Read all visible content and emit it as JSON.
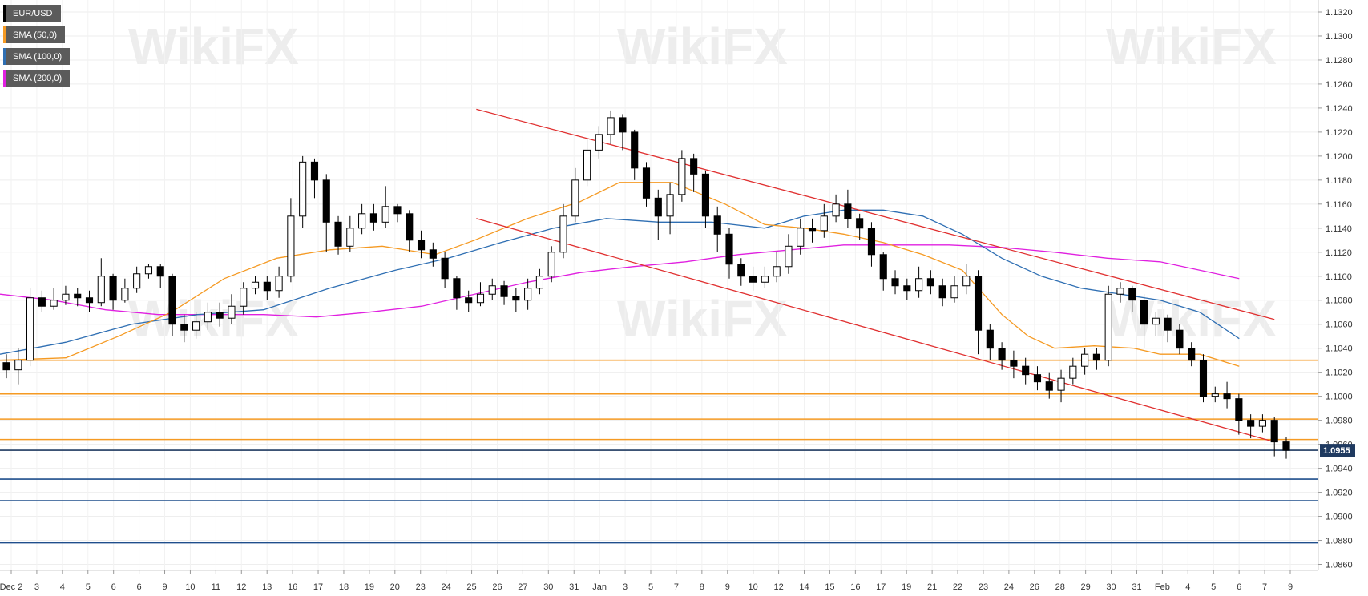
{
  "legend": [
    {
      "label": "EUR/USD",
      "color": "#000000"
    },
    {
      "label": "SMA (50,0)",
      "color": "#f59a23"
    },
    {
      "label": "SMA (100,0)",
      "color": "#2f6fb3"
    },
    {
      "label": "SMA (200,0)",
      "color": "#e020e0"
    }
  ],
  "watermark": {
    "text": "WikiFX"
  },
  "chart_data": {
    "type": "candlestick",
    "symbol": "EUR/USD",
    "ylim": [
      1.0855,
      1.133
    ],
    "y_ticks": [
      "1.0860",
      "1.0880",
      "1.0900",
      "1.0920",
      "1.0940",
      "1.0960",
      "1.0980",
      "1.1000",
      "1.1020",
      "1.1040",
      "1.1060",
      "1.1080",
      "1.1100",
      "1.1120",
      "1.1140",
      "1.1160",
      "1.1180",
      "1.1200",
      "1.1220",
      "1.1240",
      "1.1260",
      "1.1280",
      "1.1300",
      "1.1320"
    ],
    "x_ticks": [
      "Dec 2",
      "3",
      "4",
      "5",
      "6",
      "6",
      "9",
      "10",
      "11",
      "12",
      "13",
      "16",
      "17",
      "18",
      "19",
      "20",
      "23",
      "24",
      "25",
      "26",
      "27",
      "30",
      "31",
      "Jan",
      "3",
      "5",
      "7",
      "8",
      "9",
      "10",
      "12",
      "14",
      "15",
      "16",
      "17",
      "19",
      "21",
      "22",
      "23",
      "24",
      "26",
      "28",
      "29",
      "30",
      "31",
      "Feb",
      "4",
      "5",
      "6",
      "7",
      "9"
    ],
    "current_price": "1.0955",
    "horizontal_levels": [
      {
        "value": 1.103,
        "color": "#f59a23"
      },
      {
        "value": 1.1002,
        "color": "#f59a23"
      },
      {
        "value": 1.0981,
        "color": "#f59a23"
      },
      {
        "value": 1.0964,
        "color": "#f59a23"
      },
      {
        "value": 1.0955,
        "color": "#1f3a60"
      },
      {
        "value": 1.0931,
        "color": "#1f4e8c"
      },
      {
        "value": 1.0913,
        "color": "#1f4e8c"
      },
      {
        "value": 1.0878,
        "color": "#1f4e8c"
      }
    ],
    "trendlines": [
      {
        "color": "#e03030",
        "points": [
          [
            0.3613,
            1.1239
          ],
          [
            0.9667,
            1.1064
          ]
        ]
      },
      {
        "color": "#e03030",
        "points": [
          [
            0.3613,
            1.1148
          ],
          [
            0.9667,
            1.0962
          ]
        ]
      }
    ],
    "sma_50": [
      [
        0,
        1.103
      ],
      [
        0.05,
        1.1032
      ],
      [
        0.09,
        1.105
      ],
      [
        0.13,
        1.107
      ],
      [
        0.17,
        1.1098
      ],
      [
        0.21,
        1.1115
      ],
      [
        0.25,
        1.1122
      ],
      [
        0.29,
        1.1125
      ],
      [
        0.33,
        1.1118
      ],
      [
        0.36,
        1.113
      ],
      [
        0.4,
        1.1148
      ],
      [
        0.44,
        1.1162
      ],
      [
        0.47,
        1.1178
      ],
      [
        0.51,
        1.1178
      ],
      [
        0.55,
        1.116
      ],
      [
        0.58,
        1.1143
      ],
      [
        0.61,
        1.114
      ],
      [
        0.64,
        1.1135
      ],
      [
        0.67,
        1.1128
      ],
      [
        0.7,
        1.1118
      ],
      [
        0.73,
        1.1105
      ],
      [
        0.76,
        1.1068
      ],
      [
        0.78,
        1.105
      ],
      [
        0.8,
        1.104
      ],
      [
        0.83,
        1.1042
      ],
      [
        0.86,
        1.104
      ],
      [
        0.88,
        1.1035
      ],
      [
        0.91,
        1.1035
      ],
      [
        0.94,
        1.1025
      ]
    ],
    "sma_100": [
      [
        0,
        1.1035
      ],
      [
        0.05,
        1.1045
      ],
      [
        0.1,
        1.106
      ],
      [
        0.15,
        1.1068
      ],
      [
        0.2,
        1.1072
      ],
      [
        0.25,
        1.109
      ],
      [
        0.3,
        1.1105
      ],
      [
        0.34,
        1.1115
      ],
      [
        0.38,
        1.1128
      ],
      [
        0.42,
        1.114
      ],
      [
        0.46,
        1.1148
      ],
      [
        0.5,
        1.1145
      ],
      [
        0.54,
        1.1145
      ],
      [
        0.58,
        1.114
      ],
      [
        0.61,
        1.115
      ],
      [
        0.64,
        1.1155
      ],
      [
        0.67,
        1.1155
      ],
      [
        0.7,
        1.115
      ],
      [
        0.73,
        1.1135
      ],
      [
        0.76,
        1.1115
      ],
      [
        0.79,
        1.11
      ],
      [
        0.82,
        1.109
      ],
      [
        0.85,
        1.1085
      ],
      [
        0.88,
        1.108
      ],
      [
        0.91,
        1.107
      ],
      [
        0.94,
        1.1048
      ]
    ],
    "sma_200": [
      [
        0,
        1.1085
      ],
      [
        0.04,
        1.108
      ],
      [
        0.08,
        1.1072
      ],
      [
        0.12,
        1.1068
      ],
      [
        0.16,
        1.1068
      ],
      [
        0.2,
        1.1068
      ],
      [
        0.24,
        1.1066
      ],
      [
        0.28,
        1.107
      ],
      [
        0.32,
        1.1075
      ],
      [
        0.36,
        1.1085
      ],
      [
        0.4,
        1.1095
      ],
      [
        0.44,
        1.1103
      ],
      [
        0.48,
        1.1108
      ],
      [
        0.52,
        1.1112
      ],
      [
        0.56,
        1.1118
      ],
      [
        0.6,
        1.1122
      ],
      [
        0.64,
        1.1126
      ],
      [
        0.68,
        1.1126
      ],
      [
        0.72,
        1.1126
      ],
      [
        0.76,
        1.1124
      ],
      [
        0.8,
        1.112
      ],
      [
        0.84,
        1.1115
      ],
      [
        0.88,
        1.1112
      ],
      [
        0.91,
        1.1105
      ],
      [
        0.94,
        1.1098
      ]
    ],
    "candles": [
      [
        1.1028,
        1.1022,
        1.1035,
        1.1015
      ],
      [
        1.1022,
        1.103,
        1.104,
        1.101
      ],
      [
        1.103,
        1.1082,
        1.109,
        1.1025
      ],
      [
        1.1082,
        1.1075,
        1.1088,
        1.107
      ],
      [
        1.1075,
        1.108,
        1.109,
        1.1072
      ],
      [
        1.108,
        1.1085,
        1.1092,
        1.1076
      ],
      [
        1.1085,
        1.1082,
        1.109,
        1.1075
      ],
      [
        1.1082,
        1.1078,
        1.1088,
        1.107
      ],
      [
        1.1078,
        1.11,
        1.1115,
        1.1075
      ],
      [
        1.11,
        1.108,
        1.1102,
        1.1072
      ],
      [
        1.108,
        1.109,
        1.1098,
        1.1078
      ],
      [
        1.109,
        1.1102,
        1.1108,
        1.1086
      ],
      [
        1.1102,
        1.1108,
        1.111,
        1.1098
      ],
      [
        1.1108,
        1.11,
        1.111,
        1.109
      ],
      [
        1.11,
        1.106,
        1.1102,
        1.105
      ],
      [
        1.106,
        1.1055,
        1.1068,
        1.1045
      ],
      [
        1.1055,
        1.1062,
        1.107,
        1.1048
      ],
      [
        1.1062,
        1.107,
        1.1078,
        1.1055
      ],
      [
        1.107,
        1.1065,
        1.1078,
        1.1058
      ],
      [
        1.1065,
        1.1075,
        1.1085,
        1.106
      ],
      [
        1.1075,
        1.109,
        1.1095,
        1.1068
      ],
      [
        1.109,
        1.1095,
        1.11,
        1.1085
      ],
      [
        1.1095,
        1.1088,
        1.11,
        1.108
      ],
      [
        1.1088,
        1.11,
        1.1108,
        1.1082
      ],
      [
        1.11,
        1.115,
        1.1165,
        1.1095
      ],
      [
        1.115,
        1.1195,
        1.12,
        1.114
      ],
      [
        1.1195,
        1.118,
        1.1198,
        1.1165
      ],
      [
        1.118,
        1.1145,
        1.1185,
        1.112
      ],
      [
        1.1145,
        1.1125,
        1.115,
        1.1118
      ],
      [
        1.1125,
        1.114,
        1.115,
        1.112
      ],
      [
        1.114,
        1.1152,
        1.116,
        1.1135
      ],
      [
        1.1152,
        1.1145,
        1.116,
        1.1138
      ],
      [
        1.1145,
        1.1158,
        1.1175,
        1.114
      ],
      [
        1.1158,
        1.1152,
        1.116,
        1.1145
      ],
      [
        1.1152,
        1.113,
        1.1155,
        1.112
      ],
      [
        1.113,
        1.1122,
        1.1138,
        1.1115
      ],
      [
        1.1122,
        1.1115,
        1.1128,
        1.1108
      ],
      [
        1.1115,
        1.1098,
        1.112,
        1.109
      ],
      [
        1.1098,
        1.1082,
        1.11,
        1.1072
      ],
      [
        1.1082,
        1.1078,
        1.1088,
        1.107
      ],
      [
        1.1078,
        1.1085,
        1.1095,
        1.1075
      ],
      [
        1.1085,
        1.1092,
        1.1098,
        1.108
      ],
      [
        1.1092,
        1.1083,
        1.1096,
        1.1076
      ],
      [
        1.1083,
        1.108,
        1.109,
        1.107
      ],
      [
        1.108,
        1.109,
        1.1098,
        1.1072
      ],
      [
        1.109,
        1.11,
        1.1106,
        1.1085
      ],
      [
        1.11,
        1.112,
        1.1125,
        1.1095
      ],
      [
        1.112,
        1.115,
        1.116,
        1.1115
      ],
      [
        1.115,
        1.118,
        1.119,
        1.1145
      ],
      [
        1.118,
        1.1205,
        1.1215,
        1.1175
      ],
      [
        1.1205,
        1.1218,
        1.1225,
        1.1198
      ],
      [
        1.1218,
        1.1232,
        1.1238,
        1.121
      ],
      [
        1.1232,
        1.122,
        1.1235,
        1.1205
      ],
      [
        1.122,
        1.119,
        1.1222,
        1.118
      ],
      [
        1.119,
        1.1165,
        1.1195,
        1.1158
      ],
      [
        1.1165,
        1.115,
        1.1172,
        1.113
      ],
      [
        1.115,
        1.1168,
        1.1178,
        1.1135
      ],
      [
        1.1168,
        1.1198,
        1.1205,
        1.1162
      ],
      [
        1.1198,
        1.1185,
        1.1202,
        1.117
      ],
      [
        1.1185,
        1.115,
        1.1188,
        1.114
      ],
      [
        1.115,
        1.1135,
        1.1158,
        1.112
      ],
      [
        1.1135,
        1.111,
        1.114,
        1.1098
      ],
      [
        1.111,
        1.11,
        1.1115,
        1.1092
      ],
      [
        1.11,
        1.1095,
        1.1108,
        1.1088
      ],
      [
        1.1095,
        1.11,
        1.1108,
        1.109
      ],
      [
        1.11,
        1.1108,
        1.112,
        1.1095
      ],
      [
        1.1108,
        1.1125,
        1.1135,
        1.1102
      ],
      [
        1.1125,
        1.114,
        1.1148,
        1.1118
      ],
      [
        1.114,
        1.1138,
        1.1148,
        1.1128
      ],
      [
        1.1138,
        1.115,
        1.116,
        1.1132
      ],
      [
        1.115,
        1.116,
        1.1168,
        1.1145
      ],
      [
        1.116,
        1.1148,
        1.1172,
        1.114
      ],
      [
        1.1148,
        1.114,
        1.1152,
        1.113
      ],
      [
        1.114,
        1.1118,
        1.1145,
        1.1108
      ],
      [
        1.1118,
        1.1098,
        1.112,
        1.1088
      ],
      [
        1.1098,
        1.1092,
        1.1105,
        1.1085
      ],
      [
        1.1092,
        1.1088,
        1.1098,
        1.108
      ],
      [
        1.1088,
        1.1098,
        1.1108,
        1.1082
      ],
      [
        1.1098,
        1.1092,
        1.1105,
        1.1085
      ],
      [
        1.1092,
        1.1082,
        1.1098,
        1.1075
      ],
      [
        1.1082,
        1.1092,
        1.11,
        1.1078
      ],
      [
        1.1092,
        1.11,
        1.111,
        1.1085
      ],
      [
        1.11,
        1.1055,
        1.1105,
        1.1035
      ],
      [
        1.1055,
        1.104,
        1.106,
        1.103
      ],
      [
        1.104,
        1.103,
        1.1045,
        1.1022
      ],
      [
        1.103,
        1.1025,
        1.1038,
        1.1015
      ],
      [
        1.1025,
        1.1018,
        1.1032,
        1.101
      ],
      [
        1.1018,
        1.1012,
        1.1025,
        1.1005
      ],
      [
        1.1012,
        1.1005,
        1.102,
        1.0998
      ],
      [
        1.1005,
        1.1015,
        1.1022,
        1.0995
      ],
      [
        1.1015,
        1.1025,
        1.1032,
        1.101
      ],
      [
        1.1025,
        1.1035,
        1.104,
        1.1018
      ],
      [
        1.1035,
        1.103,
        1.104,
        1.1022
      ],
      [
        1.103,
        1.1085,
        1.1092,
        1.1025
      ],
      [
        1.1085,
        1.109,
        1.1095,
        1.1078
      ],
      [
        1.109,
        1.108,
        1.1092,
        1.107
      ],
      [
        1.108,
        1.106,
        1.1085,
        1.104
      ],
      [
        1.106,
        1.1065,
        1.107,
        1.105
      ],
      [
        1.1065,
        1.1055,
        1.1068,
        1.1045
      ],
      [
        1.1055,
        1.104,
        1.106,
        1.1035
      ],
      [
        1.104,
        1.103,
        1.1045,
        1.1025
      ],
      [
        1.103,
        1.1,
        1.1035,
        1.0995
      ],
      [
        1.1,
        1.1002,
        1.1008,
        1.0995
      ],
      [
        1.1002,
        1.0998,
        1.1012,
        1.099
      ],
      [
        1.0998,
        1.098,
        1.1002,
        1.0968
      ],
      [
        1.098,
        1.0975,
        1.0985,
        1.0965
      ],
      [
        1.0975,
        1.098,
        1.0985,
        1.097
      ],
      [
        1.098,
        1.0962,
        1.0983,
        1.095
      ],
      [
        1.0962,
        1.0955,
        1.0966,
        1.0948
      ]
    ]
  }
}
